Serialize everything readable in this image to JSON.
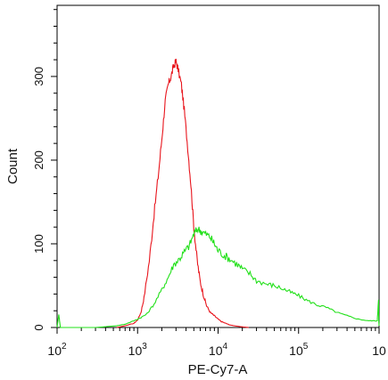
{
  "chart_data": {
    "type": "line",
    "title": "",
    "xlabel": "PE-Cy7-A",
    "ylabel": "Count",
    "x_scale": "log",
    "xlim": [
      100,
      1000000
    ],
    "ylim": [
      0,
      385
    ],
    "x_ticks": [
      {
        "value": 100,
        "base": "10",
        "exp": "2"
      },
      {
        "value": 1000,
        "base": "10",
        "exp": "3"
      },
      {
        "value": 10000,
        "base": "10",
        "exp": "4"
      },
      {
        "value": 100000,
        "base": "10",
        "exp": "5"
      },
      {
        "value": 1000000,
        "base": "10",
        "exp": ""
      }
    ],
    "y_ticks": [
      {
        "value": 0,
        "label": "0"
      },
      {
        "value": 100,
        "label": "100"
      },
      {
        "value": 200,
        "label": "200"
      },
      {
        "value": 300,
        "label": "300"
      }
    ],
    "grid": false,
    "legend": "none",
    "series": [
      {
        "color": "#e8141c",
        "x": [
          550,
          700,
          900,
          1000,
          1100,
          1200,
          1400,
          1600,
          1800,
          2000,
          2200,
          2400,
          2600,
          2800,
          3000,
          3200,
          3500,
          3800,
          4200,
          4600,
          5000,
          5500,
          6000,
          6600,
          7200,
          8000,
          9000,
          10000,
          11000,
          12500,
          14000,
          16000,
          19000,
          24000
        ],
        "y": [
          0,
          2,
          5,
          9,
          18,
          35,
          80,
          135,
          180,
          225,
          270,
          290,
          300,
          312,
          318,
          308,
          290,
          260,
          215,
          170,
          120,
          80,
          55,
          38,
          26,
          18,
          14,
          10,
          7,
          5,
          3,
          2,
          1,
          0
        ]
      },
      {
        "color": "#22e01a",
        "x": [
          100,
          105,
          110,
          300,
          550,
          700,
          900,
          1100,
          1300,
          1600,
          2000,
          2400,
          2800,
          3300,
          3800,
          4400,
          5000,
          5600,
          6200,
          7000,
          8000,
          9000,
          10000,
          12000,
          14000,
          17000,
          20000,
          25000,
          30000,
          40000,
          50000,
          65000,
          80000,
          100000,
          130000,
          170000,
          220000,
          300000,
          400000,
          550000,
          750000,
          950000,
          985000,
          990000,
          1000000
        ],
        "y": [
          0,
          16,
          0,
          0,
          2,
          4,
          8,
          12,
          16,
          28,
          45,
          60,
          75,
          82,
          90,
          98,
          112,
          118,
          115,
          112,
          108,
          100,
          92,
          86,
          82,
          76,
          70,
          64,
          56,
          52,
          50,
          46,
          42,
          38,
          32,
          27,
          24,
          18,
          14,
          10,
          8,
          8,
          35,
          8,
          2
        ]
      }
    ]
  }
}
